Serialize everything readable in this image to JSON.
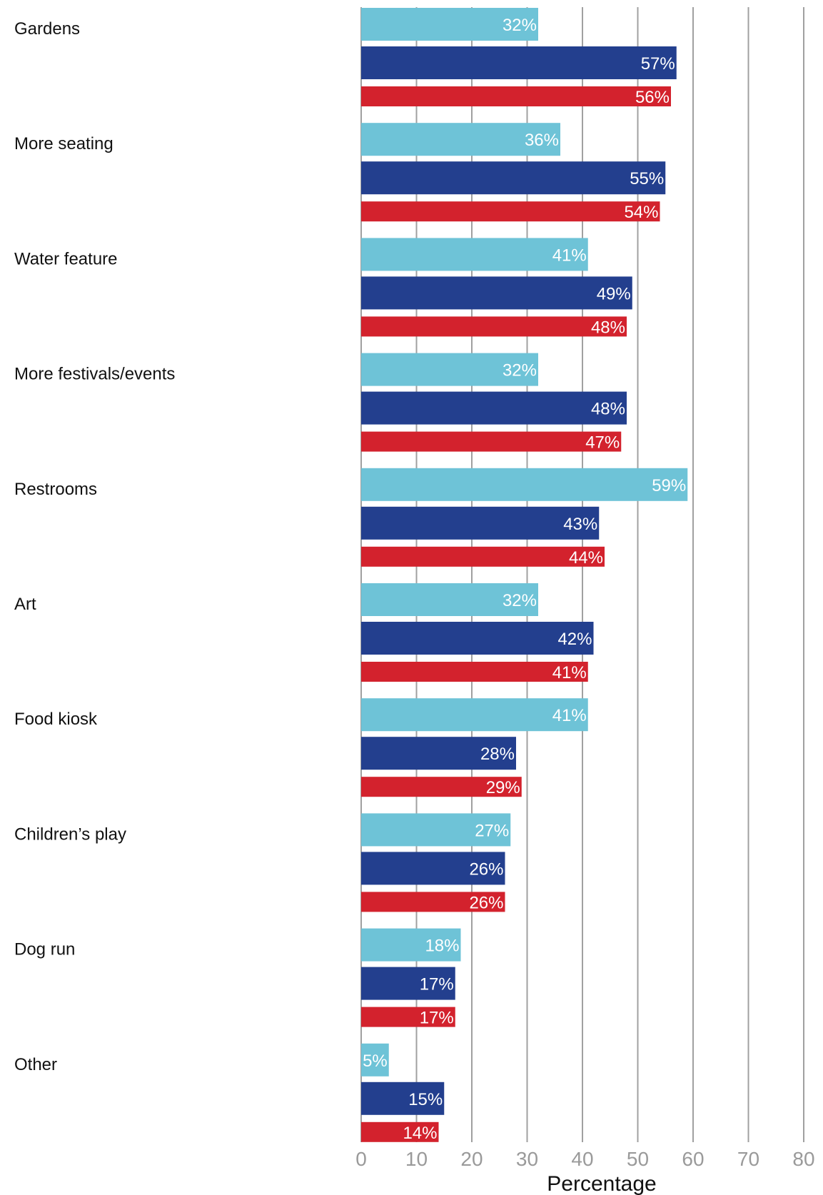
{
  "chart_data": {
    "type": "bar",
    "orientation": "horizontal",
    "xlabel": "Percentage",
    "xlim": [
      0,
      80
    ],
    "x_ticks": [
      "0",
      "10",
      "20",
      "30",
      "40",
      "50",
      "60",
      "70",
      "80"
    ],
    "grid": "vertical",
    "categories": [
      "Gardens",
      "More seating",
      "Water feature",
      "More festivals/events",
      "Restrooms",
      "Art",
      "Food kiosk",
      "Children’s play",
      "Dog run",
      "Other"
    ],
    "series": [
      {
        "color": "#6ec3d7",
        "values": [
          32,
          36,
          41,
          32,
          59,
          32,
          41,
          27,
          18,
          5
        ],
        "labels": [
          "32%",
          "36%",
          "41%",
          "32%",
          "59%",
          "32%",
          "41%",
          "27%",
          "18%",
          "5%"
        ]
      },
      {
        "color": "#233f8e",
        "values": [
          57,
          55,
          49,
          48,
          43,
          42,
          28,
          26,
          17,
          15
        ],
        "labels": [
          "57%",
          "55%",
          "49%",
          "48%",
          "43%",
          "42%",
          "28%",
          "26%",
          "17%",
          "15%"
        ]
      },
      {
        "color": "#d3222d",
        "values": [
          56,
          54,
          48,
          47,
          44,
          41,
          29,
          26,
          17,
          14
        ],
        "labels": [
          "56%",
          "54%",
          "48%",
          "47%",
          "44%",
          "41%",
          "29%",
          "26%",
          "17%",
          "14%"
        ]
      }
    ]
  }
}
